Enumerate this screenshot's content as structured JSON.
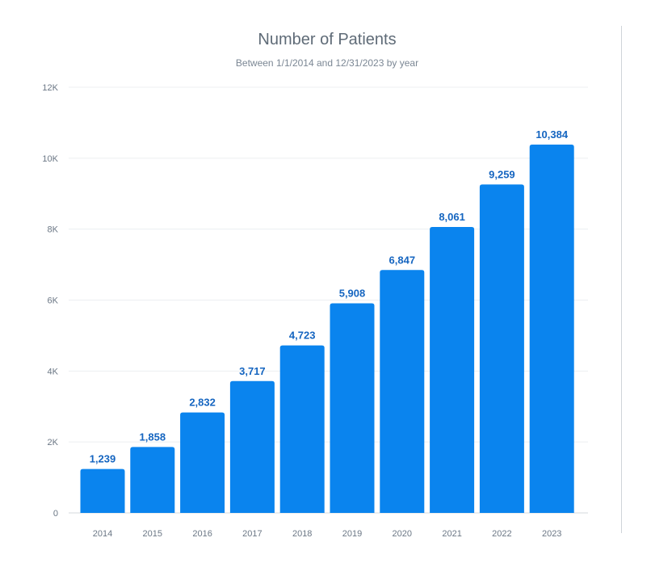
{
  "chart_data": {
    "type": "bar",
    "title": "Number of Patients",
    "subtitle": "Between 1/1/2014 and 12/31/2023 by year",
    "xlabel": "",
    "ylabel": "",
    "categories": [
      "2014",
      "2015",
      "2016",
      "2017",
      "2018",
      "2019",
      "2020",
      "2021",
      "2022",
      "2023"
    ],
    "values": [
      1239,
      1858,
      2832,
      3717,
      4723,
      5908,
      6847,
      8061,
      9259,
      10384
    ],
    "data_labels": [
      "1,239",
      "1,858",
      "2,832",
      "3,717",
      "4,723",
      "5,908",
      "6,847",
      "8,061",
      "9,259",
      "10,384"
    ],
    "ylim": [
      0,
      12000
    ],
    "y_ticks": [
      0,
      2000,
      4000,
      6000,
      8000,
      10000,
      12000
    ],
    "y_tick_labels": [
      "0",
      "2K",
      "4K",
      "6K",
      "8K",
      "10K",
      "12K"
    ],
    "grid": true,
    "legend": "none",
    "bar_color": "#0a84ee",
    "label_color": "#1565c0"
  }
}
